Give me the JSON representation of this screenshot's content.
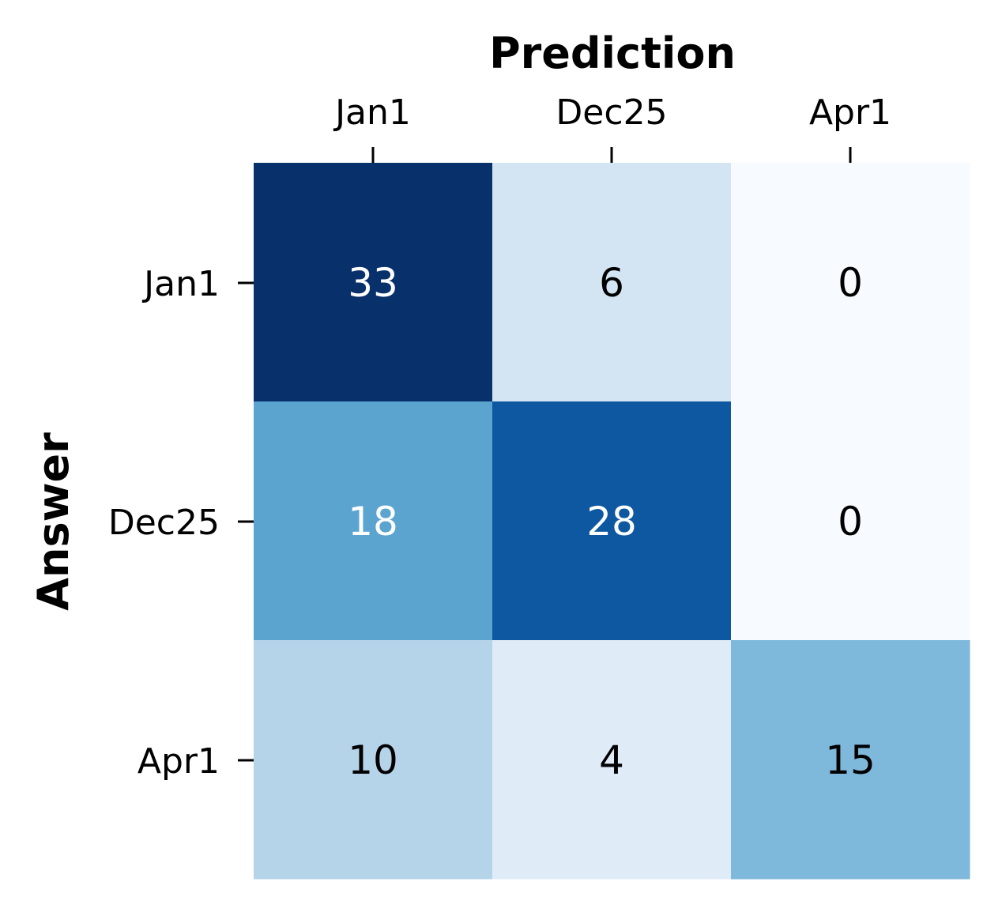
{
  "chart_data": {
    "type": "heatmap",
    "xlabel": "Prediction",
    "ylabel": "Answer",
    "x_categories": [
      "Jan1",
      "Dec25",
      "Apr1"
    ],
    "y_categories": [
      "Jan1",
      "Dec25",
      "Apr1"
    ],
    "values": [
      [
        33,
        6,
        0
      ],
      [
        18,
        28,
        0
      ],
      [
        10,
        4,
        15
      ]
    ],
    "color_range": [
      0,
      33
    ],
    "colormap": "Blues",
    "xaxis_position": "top",
    "colorbar": false
  }
}
